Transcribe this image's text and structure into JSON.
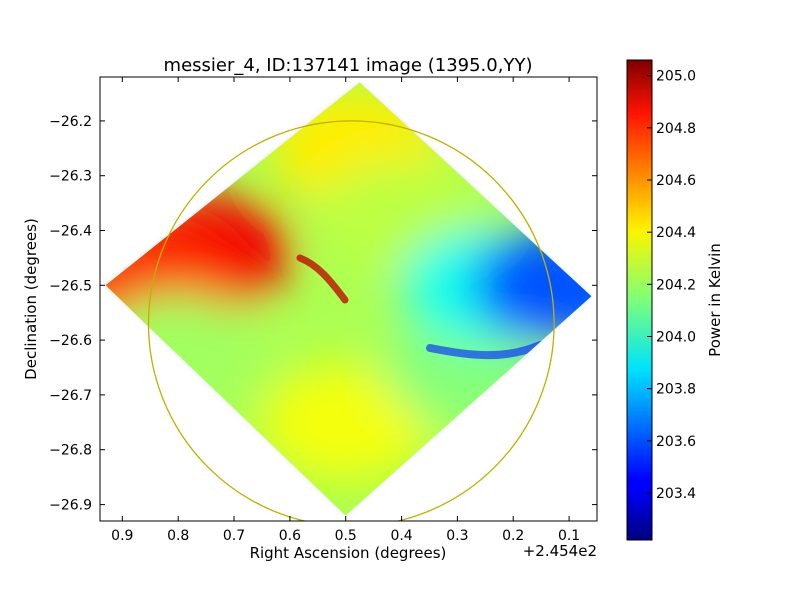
{
  "chart_data": {
    "type": "heatmap",
    "title": "messier_4, ID:137141 image (1395.0,YY)",
    "xlabel": "Right Ascension (degrees)",
    "ylabel": "Declination (degrees)",
    "x_offset_label": "+2.454e2",
    "x_axis_inverted": true,
    "xlim": [
      0.94,
      0.05
    ],
    "ylim": [
      -26.93,
      -26.12
    ],
    "x_ticks": [
      0.9,
      0.8,
      0.7,
      0.6,
      0.5,
      0.4,
      0.3,
      0.2,
      0.1
    ],
    "x_tick_labels": [
      "0.9",
      "0.8",
      "0.7",
      "0.6",
      "0.5",
      "0.4",
      "0.3",
      "0.2",
      "0.1"
    ],
    "y_ticks": [
      -26.2,
      -26.3,
      -26.4,
      -26.5,
      -26.6,
      -26.7,
      -26.8,
      -26.9
    ],
    "y_tick_labels": [
      "−26.2",
      "−26.3",
      "−26.4",
      "−26.5",
      "−26.6",
      "−26.7",
      "−26.8",
      "−26.9"
    ],
    "colorbar": {
      "label": "Power in Kelvin",
      "colormap": "jet",
      "range": [
        203.22,
        205.06
      ],
      "ticks": [
        203.4,
        203.6,
        203.8,
        204.0,
        204.2,
        204.4,
        204.6,
        204.8,
        205.0
      ],
      "tick_labels": [
        "203.4",
        "203.6",
        "203.8",
        "204.0",
        "204.2",
        "204.4",
        "204.6",
        "204.8",
        "205.0"
      ]
    },
    "image_footprint": {
      "shape": "diamond",
      "vertices_ra_dec": [
        [
          0.475,
          -26.13
        ],
        [
          0.06,
          -26.52
        ],
        [
          0.5,
          -26.92
        ],
        [
          0.93,
          -26.5
        ]
      ]
    },
    "regions": [
      {
        "name": "north-lobe",
        "center": [
          0.48,
          -26.25
        ],
        "value": 204.4
      },
      {
        "name": "north-east-arm",
        "center": [
          0.75,
          -26.44
        ],
        "value": 204.85
      },
      {
        "name": "north-east-edge",
        "center": [
          0.85,
          -26.5
        ],
        "value": 204.75
      },
      {
        "name": "central-ridge",
        "center": [
          0.4,
          -26.38
        ],
        "value": 204.25
      },
      {
        "name": "south-east-fill",
        "center": [
          0.8,
          -26.62
        ],
        "value": 204.2
      },
      {
        "name": "south-lobe",
        "center": [
          0.5,
          -26.75
        ],
        "value": 204.35
      },
      {
        "name": "south-west-fill",
        "center": [
          0.28,
          -26.65
        ],
        "value": 204.15
      },
      {
        "name": "west-centre",
        "center": [
          0.25,
          -26.5
        ],
        "value": 203.95
      },
      {
        "name": "west-arm",
        "center": [
          0.12,
          -26.5
        ],
        "value": 203.6
      }
    ],
    "circle": {
      "center": [
        0.49,
        -26.57
      ],
      "radius_deg": 0.37,
      "color": "#c0b000"
    }
  }
}
